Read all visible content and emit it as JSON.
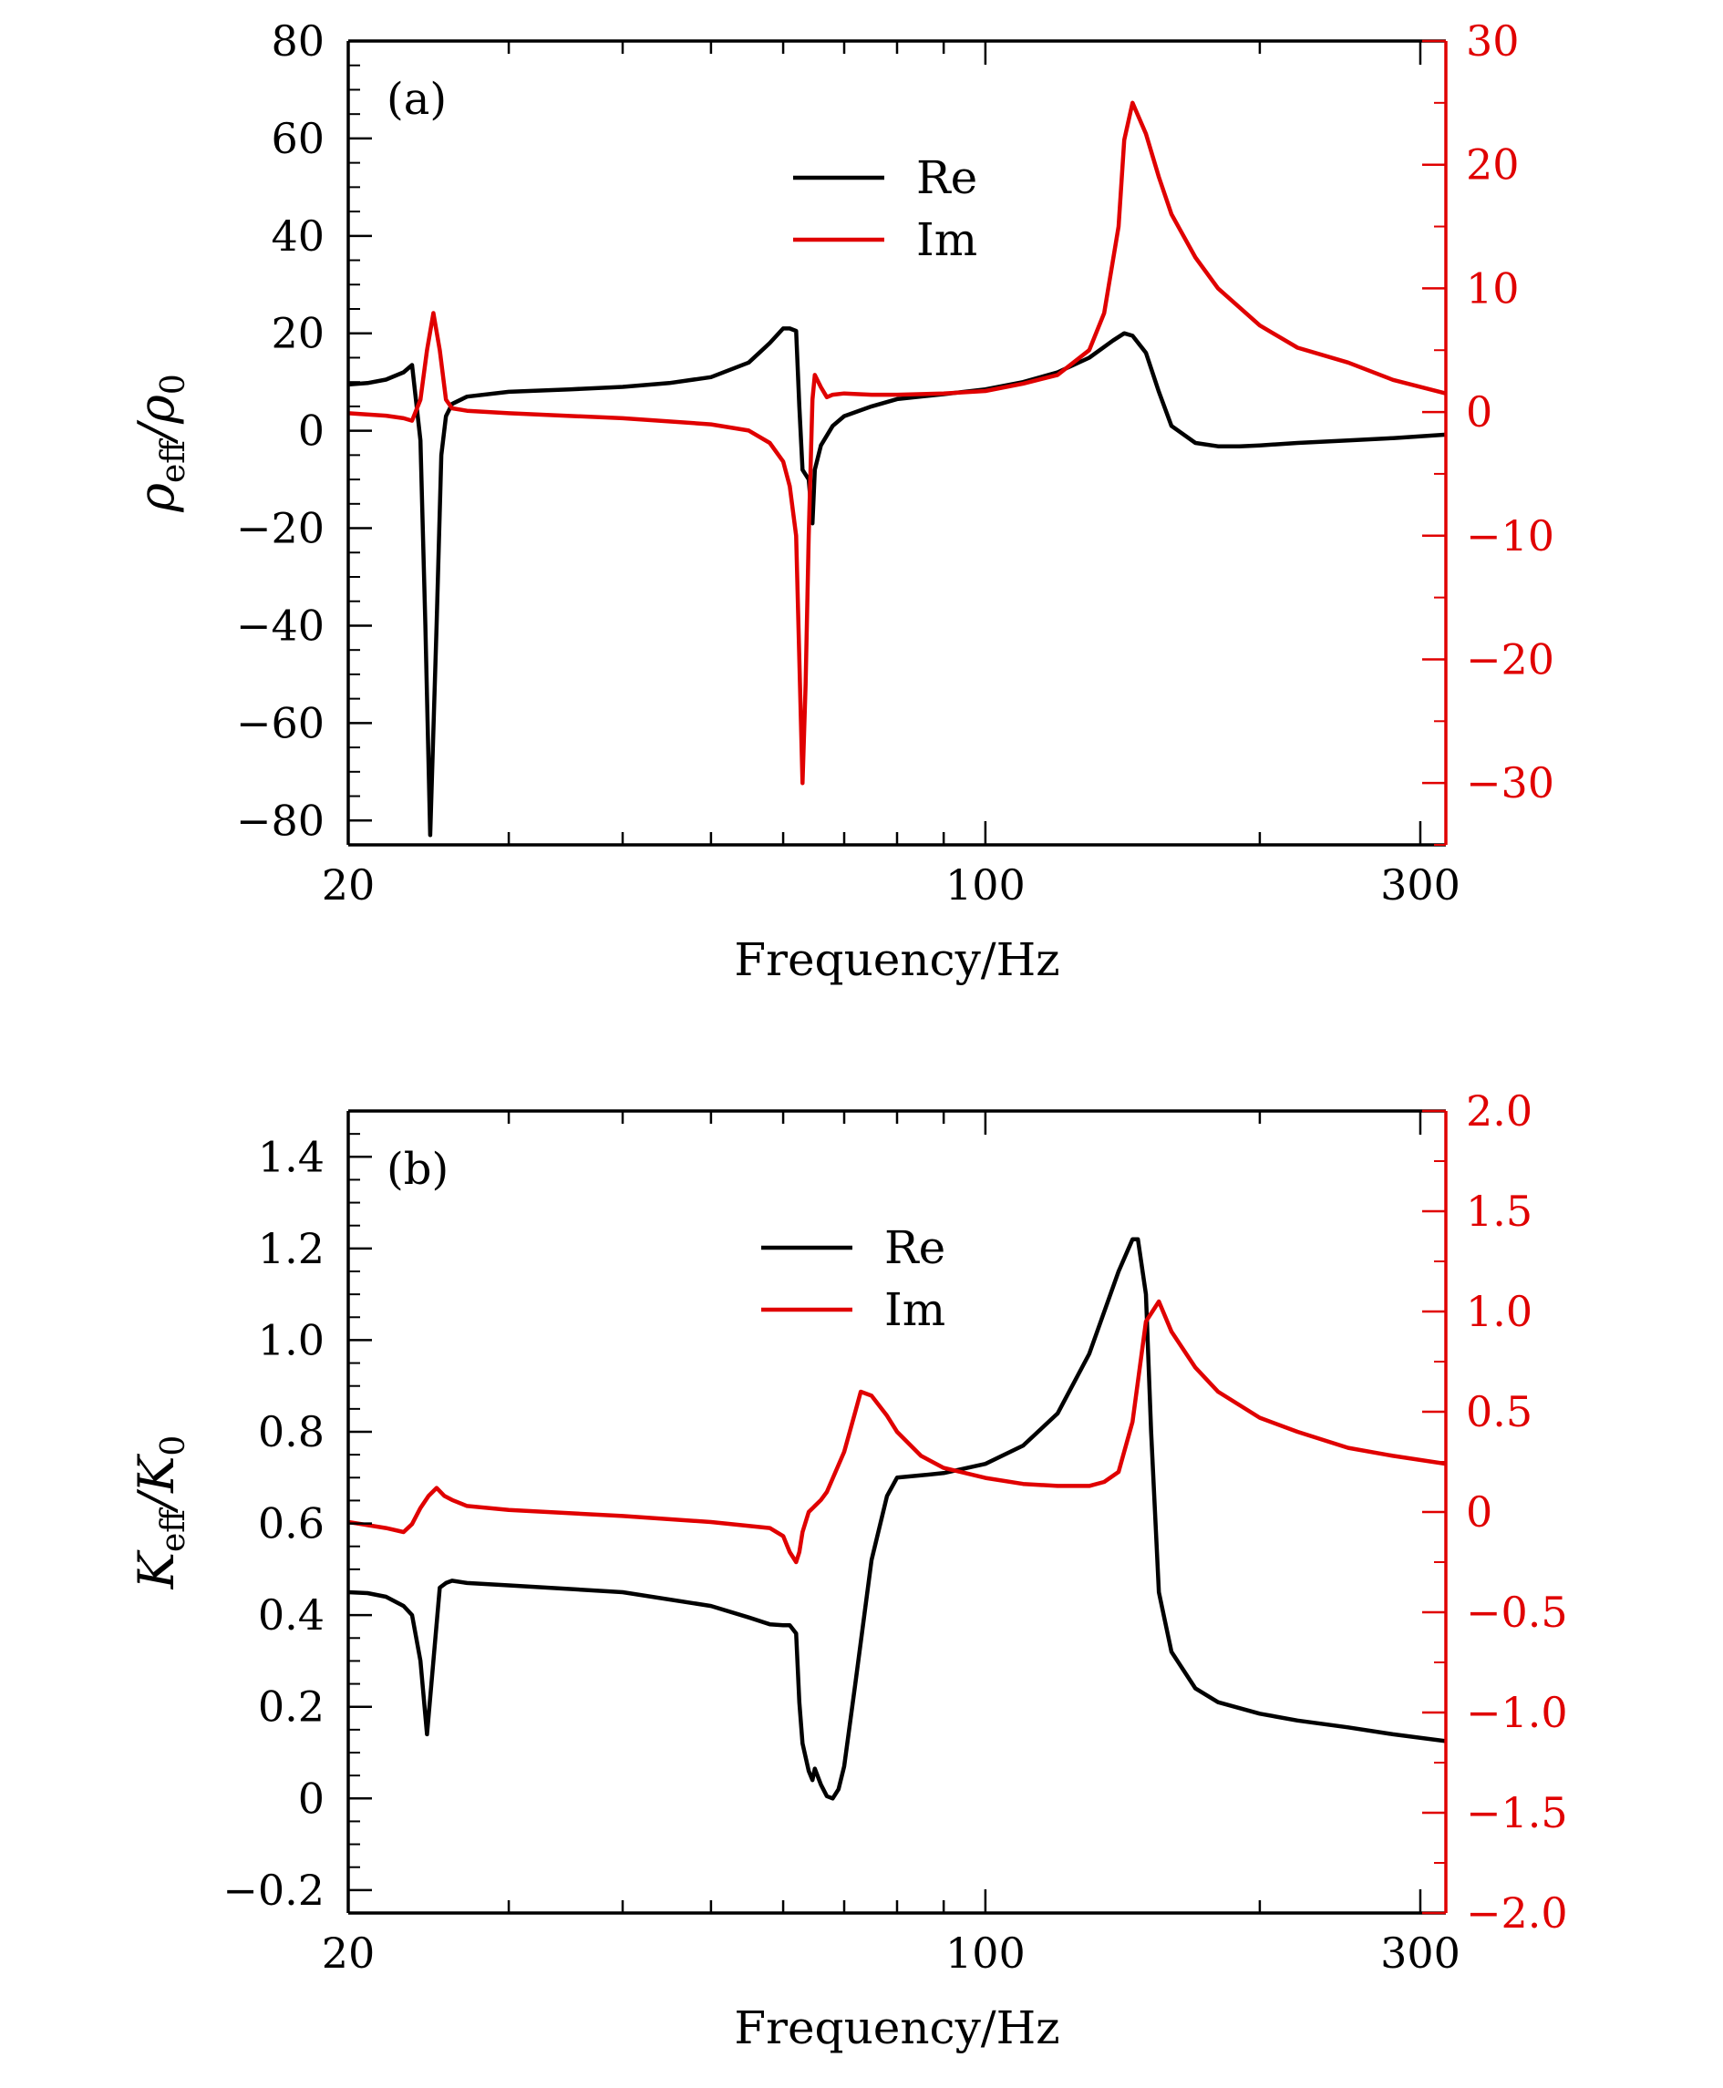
{
  "colors": {
    "re": "#000000",
    "im": "#e00000",
    "axis": "#000000"
  },
  "chart_data": [
    {
      "type": "line",
      "panel_label": "(a)",
      "xlabel": "Frequency/Hz",
      "ylabel_main": "ρ",
      "ylabel_sub": "eff",
      "ylabel_div": "/ρ",
      "ylabel_sub2": "0",
      "x_scale": "log",
      "xlim": [
        20,
        320
      ],
      "xticks": [
        20,
        100,
        300
      ],
      "xtick_labels": [
        "20",
        "100",
        "300"
      ],
      "ylim_left": [
        -85,
        80
      ],
      "yticks_left": [
        -80,
        -60,
        -40,
        -20,
        0,
        20,
        40,
        60,
        80
      ],
      "ytick_labels_left": [
        "−80",
        "−60",
        "−40",
        "−20",
        "0",
        "20",
        "40",
        "60",
        "80"
      ],
      "ylim_right": [
        -35,
        30
      ],
      "yticks_right": [
        -30,
        -20,
        -10,
        0,
        10,
        20,
        30
      ],
      "ytick_labels_right": [
        "−30",
        "−20",
        "−10",
        "0",
        "10",
        "20",
        "30"
      ],
      "legend_position": "top-center",
      "series": [
        {
          "name": "Re",
          "axis": "left",
          "color_key": "re",
          "x": [
            20,
            21,
            22,
            23,
            23.5,
            24,
            24.3,
            24.6,
            25,
            25.3,
            25.6,
            26,
            27,
            30,
            35,
            40,
            45,
            50,
            55,
            58,
            60,
            61,
            62,
            62.5,
            63,
            64,
            64.6,
            65,
            66,
            68,
            70,
            75,
            80,
            90,
            100,
            110,
            120,
            130,
            138,
            142,
            145,
            150,
            155,
            160,
            170,
            180,
            190,
            200,
            220,
            250,
            280,
            320
          ],
          "y": [
            9.5,
            9.8,
            10.5,
            12,
            13.5,
            -2,
            -40,
            -83,
            -40,
            -5,
            3,
            5.5,
            7,
            8,
            8.5,
            9,
            9.8,
            11,
            14,
            18,
            21,
            21,
            20.5,
            5,
            -8,
            -10,
            -19,
            -8,
            -3,
            1,
            3,
            5,
            6.5,
            7.5,
            8.5,
            10,
            12,
            15,
            18.5,
            20,
            19.5,
            16,
            8,
            1,
            -2.5,
            -3.2,
            -3.2,
            -3,
            -2.5,
            -2,
            -1.5,
            -0.8
          ]
        },
        {
          "name": "Im",
          "axis": "right",
          "color_key": "im",
          "x": [
            20,
            22,
            23,
            23.5,
            24,
            24.4,
            24.8,
            25.2,
            25.6,
            26,
            27,
            30,
            40,
            50,
            55,
            58,
            60,
            61,
            62,
            62.5,
            63,
            63.5,
            64,
            64.6,
            65,
            65.5,
            66,
            67,
            68,
            70,
            75,
            80,
            90,
            100,
            110,
            120,
            130,
            135,
            140,
            142,
            145,
            150,
            155,
            160,
            170,
            180,
            200,
            220,
            250,
            280,
            320
          ],
          "y": [
            -0.1,
            -0.3,
            -0.5,
            -0.7,
            1,
            5,
            8,
            5,
            1,
            0.3,
            0.1,
            -0.1,
            -0.5,
            -1,
            -1.5,
            -2.5,
            -4,
            -6,
            -10,
            -20,
            -30,
            -22,
            -10,
            1,
            3,
            2.5,
            2,
            1.2,
            1.4,
            1.5,
            1.4,
            1.4,
            1.5,
            1.7,
            2.3,
            3,
            5,
            8,
            15,
            22,
            25,
            22.5,
            19,
            16,
            12.5,
            10,
            7,
            5.2,
            4,
            2.6,
            1.5
          ]
        }
      ]
    },
    {
      "type": "line",
      "panel_label": "(b)",
      "xlabel": "Frequency/Hz",
      "ylabel_main": "K",
      "ylabel_sub": "eff",
      "ylabel_div": "/K",
      "ylabel_sub2": "0",
      "x_scale": "log",
      "xlim": [
        20,
        320
      ],
      "xticks": [
        20,
        100,
        300
      ],
      "xtick_labels": [
        "20",
        "100",
        "300"
      ],
      "ylim_left": [
        -0.25,
        1.5
      ],
      "yticks_left": [
        -0.2,
        0,
        0.2,
        0.4,
        0.6,
        0.8,
        1.0,
        1.2,
        1.4
      ],
      "ytick_labels_left": [
        "−0.2",
        "0",
        "0.2",
        "0.4",
        "0.6",
        "0.8",
        "1.0",
        "1.2",
        "1.4"
      ],
      "ylim_right": [
        -2.0,
        2.0
      ],
      "yticks_right": [
        -2.0,
        -1.5,
        -1.0,
        -0.5,
        0,
        0.5,
        1.0,
        1.5,
        2.0
      ],
      "ytick_labels_right": [
        "−2.0",
        "−1.5",
        "−1.0",
        "−0.5",
        "0",
        "0.5",
        "1.0",
        "1.5",
        "2.0"
      ],
      "legend_position": "top-center",
      "series": [
        {
          "name": "Re",
          "axis": "left",
          "color_key": "re",
          "x": [
            20,
            21,
            22,
            23,
            23.5,
            24,
            24.4,
            24.8,
            25.2,
            25.6,
            26,
            27,
            30,
            40,
            50,
            55,
            58,
            60,
            61,
            62,
            62.5,
            63,
            64,
            64.6,
            65,
            66,
            67,
            68,
            69,
            70,
            72,
            75,
            78,
            80,
            85,
            90,
            100,
            110,
            120,
            130,
            140,
            145,
            147,
            150,
            152,
            155,
            160,
            170,
            180,
            200,
            220,
            250,
            280,
            320
          ],
          "y": [
            0.45,
            0.448,
            0.44,
            0.42,
            0.4,
            0.3,
            0.14,
            0.3,
            0.46,
            0.47,
            0.475,
            0.47,
            0.465,
            0.45,
            0.42,
            0.395,
            0.38,
            0.378,
            0.378,
            0.36,
            0.21,
            0.12,
            0.06,
            0.04,
            0.065,
            0.03,
            0.005,
            0.0,
            0.02,
            0.07,
            0.25,
            0.52,
            0.66,
            0.7,
            0.705,
            0.71,
            0.73,
            0.77,
            0.84,
            0.97,
            1.15,
            1.22,
            1.22,
            1.1,
            0.8,
            0.45,
            0.32,
            0.24,
            0.21,
            0.185,
            0.17,
            0.155,
            0.14,
            0.125
          ]
        },
        {
          "name": "Im",
          "axis": "right",
          "color_key": "im",
          "x": [
            20,
            22,
            23,
            23.5,
            24,
            24.5,
            25,
            25.5,
            26,
            27,
            30,
            40,
            50,
            58,
            60,
            61,
            62,
            62.5,
            63,
            64,
            65,
            66,
            67,
            70,
            72,
            73,
            75,
            78,
            80,
            85,
            90,
            100,
            110,
            120,
            130,
            135,
            140,
            145,
            150,
            155,
            160,
            170,
            180,
            200,
            220,
            250,
            280,
            320
          ],
          "y": [
            -0.05,
            -0.08,
            -0.1,
            -0.06,
            0.02,
            0.08,
            0.12,
            0.08,
            0.06,
            0.03,
            0.01,
            -0.02,
            -0.05,
            -0.08,
            -0.12,
            -0.2,
            -0.25,
            -0.2,
            -0.1,
            0.0,
            0.03,
            0.06,
            0.1,
            0.3,
            0.5,
            0.6,
            0.58,
            0.48,
            0.4,
            0.28,
            0.22,
            0.17,
            0.14,
            0.13,
            0.13,
            0.15,
            0.2,
            0.45,
            0.95,
            1.05,
            0.9,
            0.72,
            0.6,
            0.47,
            0.4,
            0.32,
            0.28,
            0.24
          ]
        }
      ]
    }
  ]
}
